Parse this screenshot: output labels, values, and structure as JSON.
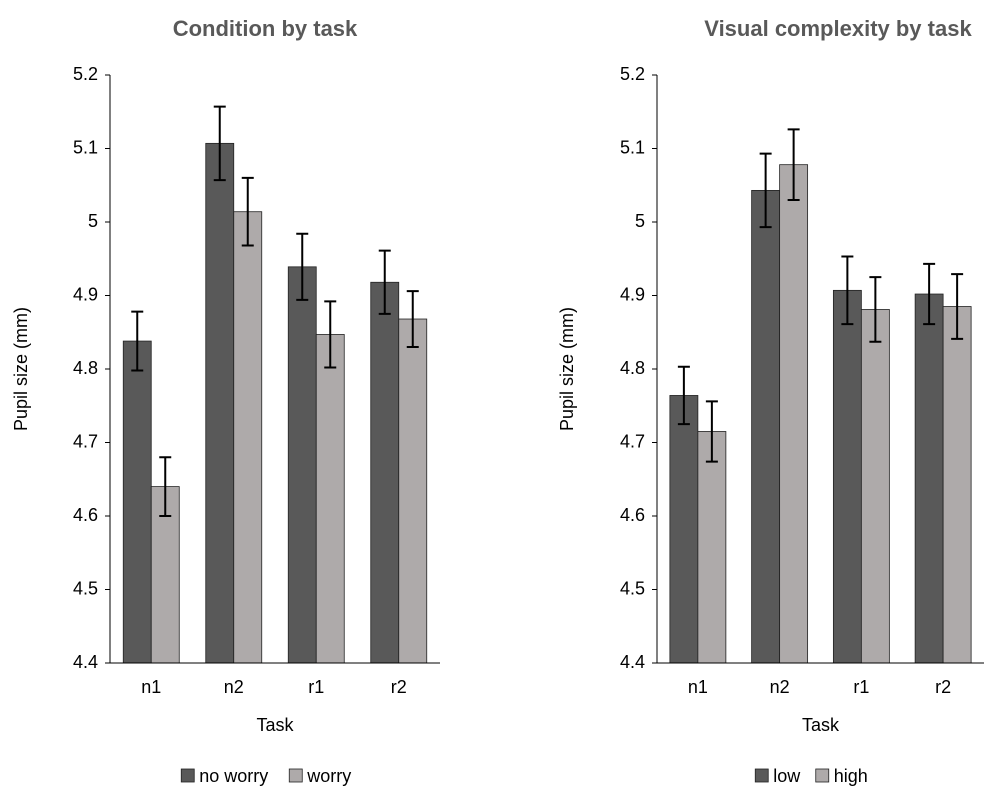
{
  "chart_data": [
    {
      "type": "bar",
      "title": "Condition by task",
      "x_label": "Task",
      "y_label": "Pupil size (mm)",
      "categories": [
        "n1",
        "n2",
        "r1",
        "r2"
      ],
      "series": [
        {
          "name": "no worry",
          "color": "#595959",
          "values": [
            4.838,
            5.107,
            4.939,
            4.918
          ],
          "errors": [
            0.04,
            0.05,
            0.045,
            0.043
          ]
        },
        {
          "name": "worry",
          "color": "#aeaaaa",
          "values": [
            4.64,
            5.014,
            4.847,
            4.868
          ],
          "errors": [
            0.04,
            0.046,
            0.045,
            0.038
          ]
        }
      ],
      "ylim": [
        4.4,
        5.2
      ],
      "yticks": [
        4.4,
        4.5,
        4.6,
        4.7,
        4.8,
        4.9,
        5,
        5.1,
        5.2
      ],
      "legend": "bottom"
    },
    {
      "type": "bar",
      "title": "Visual complexity by task",
      "x_label": "Task",
      "y_label": "Pupil size (mm)",
      "categories": [
        "n1",
        "n2",
        "r1",
        "r2"
      ],
      "series": [
        {
          "name": "low",
          "color": "#595959",
          "values": [
            4.764,
            5.043,
            4.907,
            4.902
          ],
          "errors": [
            0.039,
            0.05,
            0.046,
            0.041
          ]
        },
        {
          "name": "high",
          "color": "#aeaaaa",
          "values": [
            4.715,
            5.078,
            4.881,
            4.885
          ],
          "errors": [
            0.041,
            0.048,
            0.044,
            0.044
          ]
        }
      ],
      "ylim": [
        4.4,
        5.2
      ],
      "yticks": [
        4.4,
        4.5,
        4.6,
        4.7,
        4.8,
        4.9,
        5,
        5.1,
        5.2
      ],
      "legend": "bottom"
    }
  ]
}
